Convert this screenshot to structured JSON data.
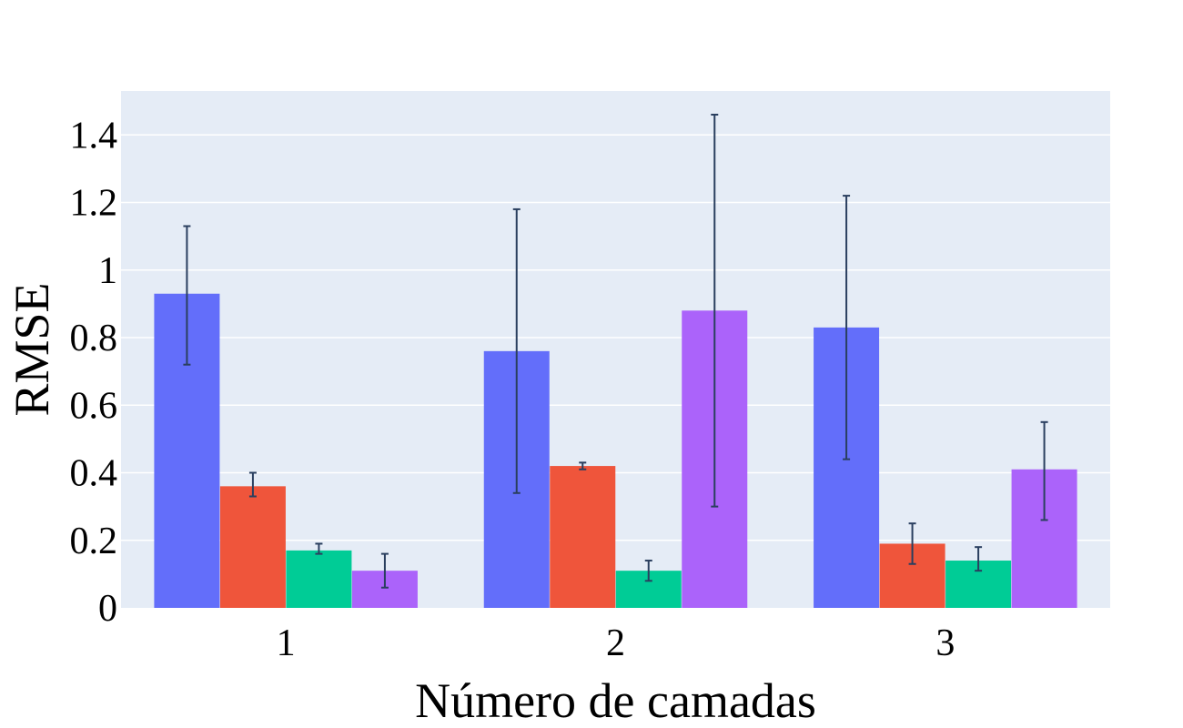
{
  "chart_data": {
    "type": "bar",
    "categories": [
      "1",
      "2",
      "3"
    ],
    "xlabel": "Número de camadas",
    "ylabel": "RMSE",
    "ylim": [
      0,
      1.53
    ],
    "yticks": [
      0,
      0.2,
      0.4,
      0.6,
      0.8,
      1,
      1.2,
      1.4
    ],
    "ytick_labels": [
      "0",
      "0.2",
      "0.4",
      "0.6",
      "0.8",
      "1",
      "1.2",
      "1.4"
    ],
    "grid": true,
    "plot_background": "#E5ECF6",
    "error_bar_color": "#2A3F5F",
    "series": [
      {
        "color": "#636EFA",
        "values": [
          0.93,
          0.76,
          0.83
        ],
        "error_low": [
          0.72,
          0.34,
          0.44
        ],
        "error_high": [
          1.13,
          1.18,
          1.22
        ]
      },
      {
        "color": "#EF553B",
        "values": [
          0.36,
          0.42,
          0.19
        ],
        "error_low": [
          0.33,
          0.41,
          0.13
        ],
        "error_high": [
          0.4,
          0.43,
          0.25
        ]
      },
      {
        "color": "#00CC96",
        "values": [
          0.17,
          0.11,
          0.14
        ],
        "error_low": [
          0.16,
          0.08,
          0.11
        ],
        "error_high": [
          0.19,
          0.14,
          0.18
        ]
      },
      {
        "color": "#AB63FA",
        "values": [
          0.11,
          0.88,
          0.41
        ],
        "error_low": [
          0.06,
          0.3,
          0.26
        ],
        "error_high": [
          0.16,
          1.46,
          0.55
        ]
      }
    ]
  }
}
